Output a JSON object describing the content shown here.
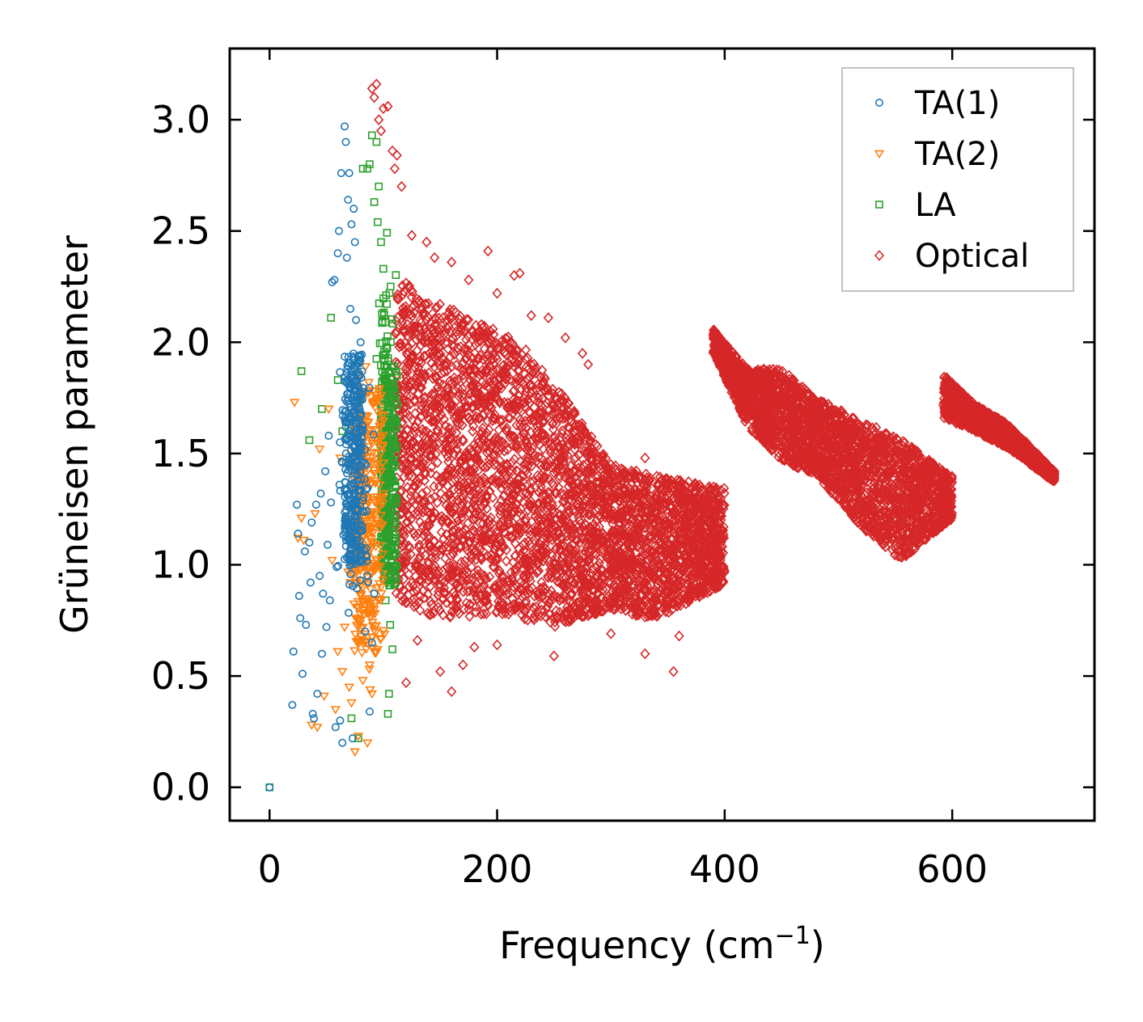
{
  "chart_data": {
    "type": "scatter",
    "title": "",
    "xlabel": "Frequency (cm",
    "xlabel_sup": "−1",
    "xlabel_tail": ")",
    "ylabel": "Grüneisen parameter",
    "xlim": [
      -35,
      725
    ],
    "ylim": [
      -0.15,
      3.32
    ],
    "xticks": [
      0,
      200,
      400,
      600
    ],
    "xtick_labels": [
      "0",
      "200",
      "400",
      "600"
    ],
    "yticks": [
      0.0,
      0.5,
      1.0,
      1.5,
      2.0,
      2.5,
      3.0
    ],
    "ytick_labels": [
      "0.0",
      "0.5",
      "1.0",
      "1.5",
      "2.0",
      "2.5",
      "3.0"
    ],
    "grid": false,
    "legend_position": "top-right",
    "series": [
      {
        "name": "TA(1)",
        "marker": "circle",
        "color": "#1f77b4",
        "points": [
          [
            0,
            0
          ],
          [
            20,
            0.37
          ],
          [
            21,
            0.61
          ],
          [
            24,
            1.27
          ],
          [
            25,
            1.14
          ],
          [
            26,
            0.86
          ],
          [
            27,
            0.76
          ],
          [
            29,
            0.51
          ],
          [
            31,
            1.06
          ],
          [
            32,
            0.73
          ],
          [
            35,
            1.1
          ],
          [
            36,
            0.92
          ],
          [
            37,
            1.19
          ],
          [
            38,
            0.33
          ],
          [
            39,
            0.31
          ],
          [
            41,
            1.27
          ],
          [
            42,
            0.42
          ],
          [
            44,
            0.95
          ],
          [
            45,
            1.32
          ],
          [
            46,
            0.6
          ],
          [
            47,
            0.87
          ],
          [
            49,
            1.42
          ],
          [
            50,
            0.72
          ],
          [
            51,
            1.09
          ],
          [
            52,
            1.58
          ],
          [
            53,
            0.84
          ],
          [
            54,
            1.28
          ],
          [
            55,
            2.27
          ],
          [
            57,
            2.28
          ],
          [
            58,
            0.27
          ],
          [
            59,
            0.99
          ],
          [
            60,
            2.4
          ],
          [
            61,
            2.5
          ],
          [
            62,
            0.3
          ],
          [
            63,
            2.76
          ],
          [
            64,
            0.2
          ],
          [
            66,
            2.97
          ],
          [
            67,
            2.9
          ],
          [
            68,
            2.38
          ],
          [
            69,
            2.64
          ],
          [
            70,
            2.76
          ],
          [
            71,
            2.15
          ],
          [
            72,
            2.53
          ],
          [
            73,
            0.22
          ],
          [
            74,
            2.6
          ],
          [
            75,
            2.45
          ],
          [
            76,
            2.1
          ],
          [
            78,
            1.8
          ],
          [
            80,
            2.0
          ],
          [
            82,
            1.6
          ],
          [
            84,
            0.7
          ],
          [
            86,
            0.95
          ],
          [
            88,
            0.34
          ],
          [
            90,
            0.65
          ],
          [
            92,
            0.87
          ]
        ],
        "band": {
          "x": [
            55,
            95
          ],
          "y": [
            0.55,
            2.15
          ],
          "core_x": [
            66,
            82
          ],
          "core_y": [
            1.0,
            1.95
          ]
        }
      },
      {
        "name": "TA(2)",
        "marker": "triangle-down",
        "color": "#ff7f0e",
        "points": [
          [
            22,
            1.73
          ],
          [
            25,
            1.12
          ],
          [
            28,
            1.21
          ],
          [
            30,
            1.11
          ],
          [
            37,
            0.28
          ],
          [
            40,
            1.23
          ],
          [
            42,
            0.27
          ],
          [
            44,
            1.52
          ],
          [
            48,
            0.41
          ],
          [
            52,
            1.7
          ],
          [
            55,
            1.02
          ],
          [
            58,
            0.35
          ],
          [
            60,
            0.61
          ],
          [
            62,
            1.48
          ],
          [
            64,
            0.52
          ],
          [
            66,
            0.72
          ],
          [
            70,
            0.45
          ],
          [
            72,
            0.38
          ],
          [
            75,
            0.16
          ],
          [
            78,
            0.23
          ],
          [
            80,
            0.87
          ],
          [
            82,
            0.48
          ],
          [
            84,
            0.65
          ],
          [
            86,
            0.2
          ],
          [
            88,
            0.55
          ],
          [
            90,
            0.42
          ],
          [
            92,
            0.8
          ],
          [
            95,
            0.62
          ],
          [
            98,
            0.9
          ]
        ],
        "band": {
          "x": [
            60,
            105
          ],
          "y": [
            0.35,
            2.05
          ],
          "core_x": [
            74,
            100
          ],
          "core_y": [
            0.6,
            1.8
          ]
        }
      },
      {
        "name": "LA",
        "marker": "square",
        "color": "#2ca02c",
        "points": [
          [
            0,
            0
          ],
          [
            28,
            1.87
          ],
          [
            35,
            1.56
          ],
          [
            46,
            1.7
          ],
          [
            54,
            2.11
          ],
          [
            60,
            1.83
          ],
          [
            64,
            1.6
          ],
          [
            72,
            0.31
          ],
          [
            78,
            0.22
          ],
          [
            82,
            2.78
          ],
          [
            86,
            2.78
          ],
          [
            88,
            2.8
          ],
          [
            90,
            2.93
          ],
          [
            92,
            2.63
          ],
          [
            94,
            2.9
          ],
          [
            95,
            2.54
          ],
          [
            96,
            2.7
          ],
          [
            98,
            2.45
          ],
          [
            100,
            2.33
          ],
          [
            102,
            0.84
          ],
          [
            104,
            0.33
          ],
          [
            105,
            0.42
          ],
          [
            106,
            0.73
          ],
          [
            108,
            0.62
          ],
          [
            110,
            1.78
          ],
          [
            112,
            1.85
          ]
        ],
        "band": {
          "x": [
            92,
            114
          ],
          "y": [
            0.6,
            2.7
          ],
          "core_x": [
            98,
            112
          ],
          "core_y": [
            0.9,
            1.9
          ]
        }
      },
      {
        "name": "Optical",
        "marker": "diamond",
        "color": "#d62728",
        "clusters": [
          {
            "x": [
              110,
              400
            ],
            "y_top": [
              [
                110,
                2.3
              ],
              [
                140,
                2.2
              ],
              [
                180,
                2.1
              ],
              [
                220,
                2.0
              ],
              [
                260,
                1.75
              ],
              [
                300,
                1.45
              ],
              [
                340,
                1.4
              ],
              [
                395,
                1.35
              ]
            ],
            "y_bottom": [
              [
                110,
                0.85
              ],
              [
                150,
                0.75
              ],
              [
                200,
                0.78
              ],
              [
                250,
                0.72
              ],
              [
                300,
                0.8
              ],
              [
                340,
                0.75
              ],
              [
                395,
                0.9
              ]
            ]
          },
          {
            "x": [
              390,
              600
            ],
            "y_top": [
              [
                390,
                2.06
              ],
              [
                420,
                1.88
              ],
              [
                450,
                1.88
              ],
              [
                480,
                1.75
              ],
              [
                520,
                1.65
              ],
              [
                560,
                1.55
              ],
              [
                598,
                1.4
              ]
            ],
            "y_bottom": [
              [
                390,
                1.95
              ],
              [
                420,
                1.62
              ],
              [
                450,
                1.47
              ],
              [
                480,
                1.4
              ],
              [
                520,
                1.17
              ],
              [
                555,
                1.02
              ],
              [
                598,
                1.2
              ]
            ]
          },
          {
            "x": [
              592,
              690
            ],
            "y_top": [
              [
                592,
                1.86
              ],
              [
                620,
                1.72
              ],
              [
                650,
                1.63
              ],
              [
                690,
                1.42
              ]
            ],
            "y_bottom": [
              [
                592,
                1.66
              ],
              [
                620,
                1.6
              ],
              [
                650,
                1.52
              ],
              [
                690,
                1.37
              ]
            ]
          }
        ],
        "outliers": [
          [
            90,
            3.14
          ],
          [
            92,
            3.1
          ],
          [
            94,
            3.16
          ],
          [
            96,
            3.0
          ],
          [
            98,
            2.95
          ],
          [
            100,
            3.05
          ],
          [
            104,
            3.06
          ],
          [
            108,
            2.86
          ],
          [
            110,
            2.78
          ],
          [
            112,
            2.84
          ],
          [
            116,
            2.7
          ],
          [
            125,
            2.48
          ],
          [
            138,
            2.45
          ],
          [
            145,
            2.38
          ],
          [
            160,
            2.36
          ],
          [
            175,
            2.28
          ],
          [
            192,
            2.41
          ],
          [
            200,
            2.22
          ],
          [
            215,
            2.3
          ],
          [
            220,
            2.31
          ],
          [
            230,
            2.12
          ],
          [
            245,
            2.11
          ],
          [
            260,
            2.02
          ],
          [
            275,
            1.95
          ],
          [
            280,
            1.9
          ],
          [
            300,
            1.45
          ],
          [
            330,
            1.48
          ],
          [
            120,
            0.47
          ],
          [
            130,
            0.66
          ],
          [
            150,
            0.52
          ],
          [
            160,
            0.43
          ],
          [
            170,
            0.55
          ],
          [
            180,
            0.63
          ],
          [
            200,
            0.64
          ],
          [
            250,
            0.59
          ],
          [
            300,
            0.69
          ],
          [
            330,
            0.6
          ],
          [
            355,
            0.52
          ],
          [
            360,
            0.68
          ],
          [
            372,
            0.88
          ],
          [
            378,
            0.9
          ]
        ]
      }
    ]
  }
}
